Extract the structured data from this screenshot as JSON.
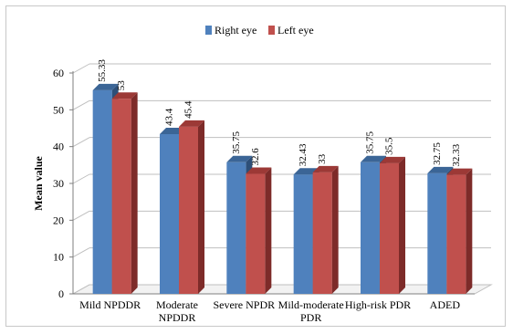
{
  "chart_data": {
    "type": "bar",
    "title": "",
    "xlabel": "",
    "ylabel": "Mean  value",
    "ylim": [
      0,
      60
    ],
    "yticks": [
      0,
      10,
      20,
      30,
      40,
      50,
      60
    ],
    "grid": true,
    "legend_position": "top-center",
    "categories": [
      [
        "Mild NPDDR"
      ],
      [
        "Moderate",
        "NPDDR"
      ],
      [
        "Severe NPDR"
      ],
      [
        "Mild-moderate",
        "PDR"
      ],
      [
        "High-risk PDR"
      ],
      [
        "ADED"
      ]
    ],
    "series": [
      {
        "name": "Right eye",
        "color": "#4f81bd",
        "top": "#3b6596",
        "side": "#2d4f78",
        "values": [
          55.33,
          43.4,
          35.75,
          32.43,
          35.75,
          32.75
        ],
        "labels": [
          "55.33",
          "43.4",
          "35.75",
          "32.43",
          "35.75",
          "32.75"
        ]
      },
      {
        "name": "Left eye",
        "color": "#c0504d",
        "top": "#9c3936",
        "side": "#7d2b29",
        "values": [
          53,
          45.4,
          32.6,
          33,
          35.5,
          32.33
        ],
        "labels": [
          "53",
          "45.4",
          "32.6",
          "33",
          "35.5",
          "32.33"
        ]
      }
    ]
  }
}
